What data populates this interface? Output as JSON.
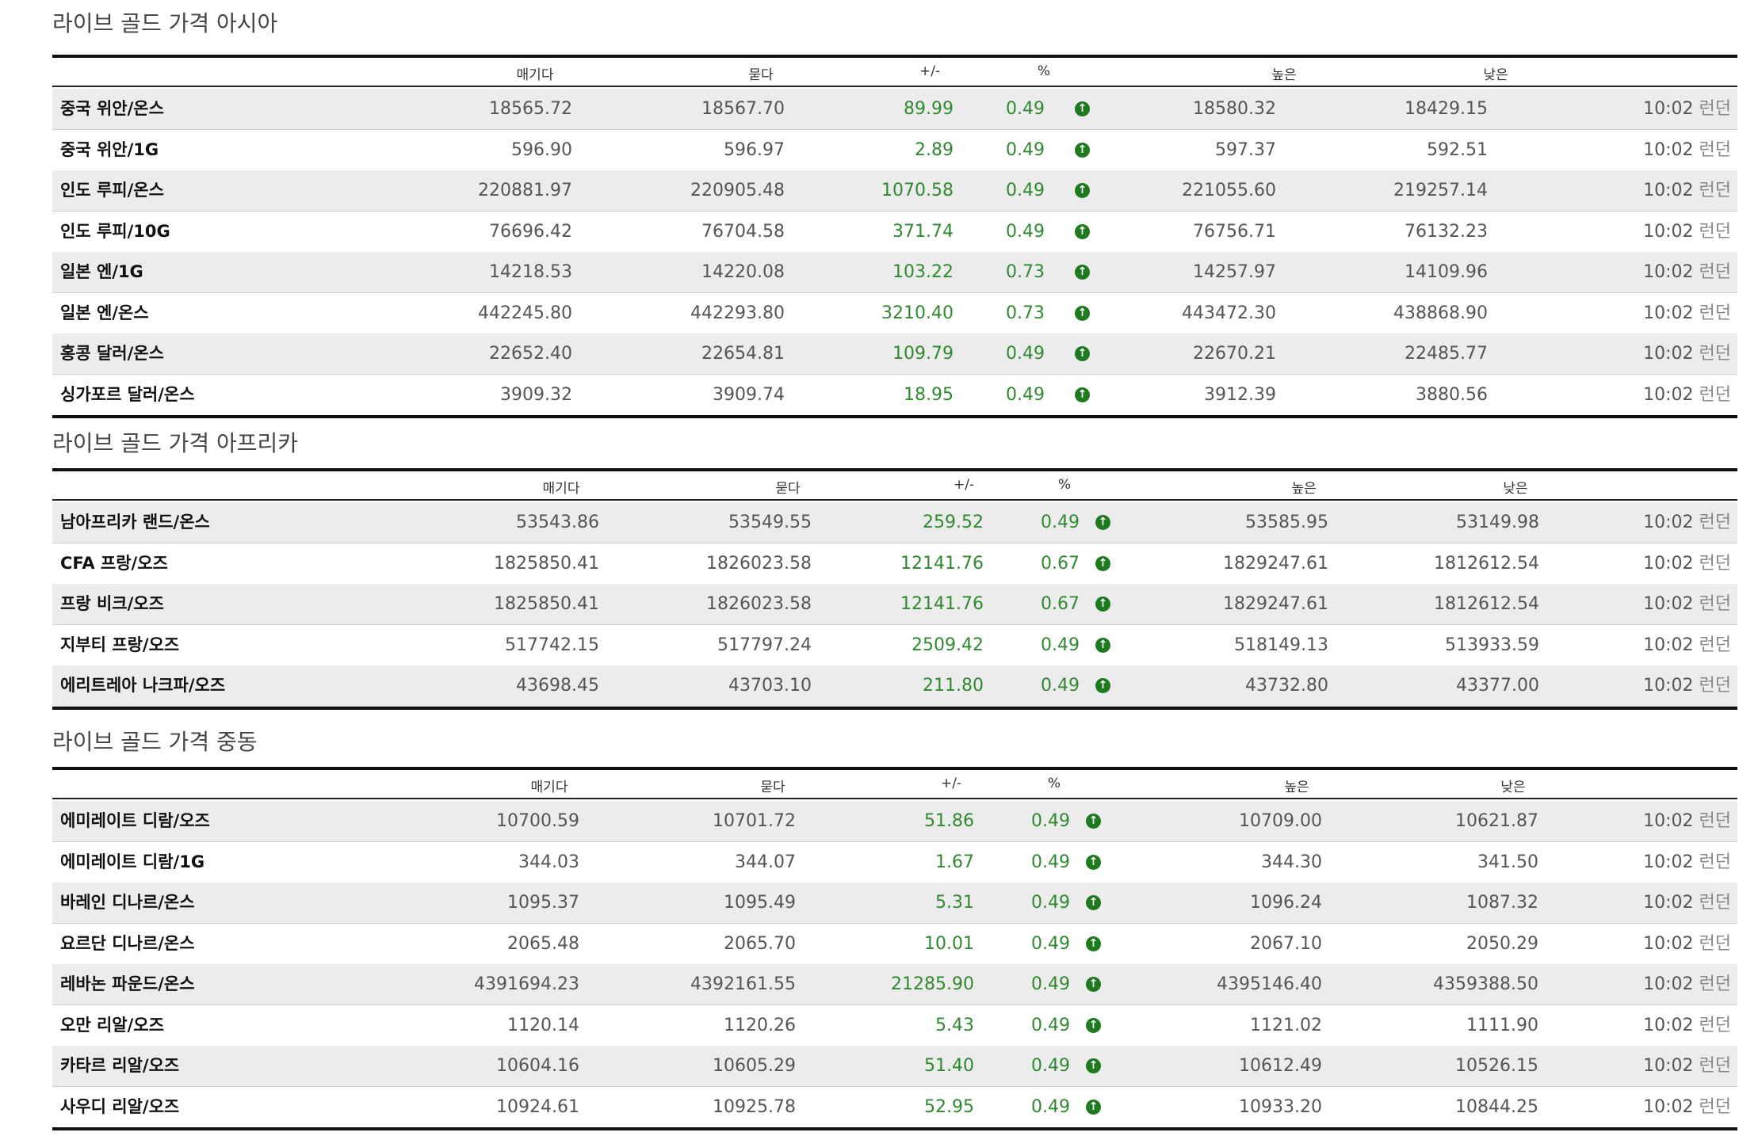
{
  "columns": {
    "bid": "매기다",
    "ask": "묻다",
    "change": "+/-",
    "percent": "%",
    "high": "높은",
    "low": "낮은"
  },
  "icons": {
    "up": "arrow-up-circle-icon"
  },
  "colors": {
    "positive": "#2f8a2f",
    "up_icon": "#1f7a1f"
  },
  "sections": [
    {
      "title": "라이브 골드 가격 아시아",
      "rows": [
        {
          "name": "중국 위안/온스",
          "bid": "18565.72",
          "ask": "18567.70",
          "change": "89.99",
          "percent": "0.49",
          "high": "18580.32",
          "low": "18429.15",
          "time": "10:02",
          "market": "런던"
        },
        {
          "name": "중국 위안/1G",
          "bid": "596.90",
          "ask": "596.97",
          "change": "2.89",
          "percent": "0.49",
          "high": "597.37",
          "low": "592.51",
          "time": "10:02",
          "market": "런던"
        },
        {
          "name": "인도 루피/온스",
          "bid": "220881.97",
          "ask": "220905.48",
          "change": "1070.58",
          "percent": "0.49",
          "high": "221055.60",
          "low": "219257.14",
          "time": "10:02",
          "market": "런던"
        },
        {
          "name": "인도 루피/10G",
          "bid": "76696.42",
          "ask": "76704.58",
          "change": "371.74",
          "percent": "0.49",
          "high": "76756.71",
          "low": "76132.23",
          "time": "10:02",
          "market": "런던"
        },
        {
          "name": "일본 엔/1G",
          "bid": "14218.53",
          "ask": "14220.08",
          "change": "103.22",
          "percent": "0.73",
          "high": "14257.97",
          "low": "14109.96",
          "time": "10:02",
          "market": "런던"
        },
        {
          "name": "일본 엔/온스",
          "bid": "442245.80",
          "ask": "442293.80",
          "change": "3210.40",
          "percent": "0.73",
          "high": "443472.30",
          "low": "438868.90",
          "time": "10:02",
          "market": "런던"
        },
        {
          "name": "홍콩 달러/온스",
          "bid": "22652.40",
          "ask": "22654.81",
          "change": "109.79",
          "percent": "0.49",
          "high": "22670.21",
          "low": "22485.77",
          "time": "10:02",
          "market": "런던"
        },
        {
          "name": "싱가포르 달러/온스",
          "bid": "3909.32",
          "ask": "3909.74",
          "change": "18.95",
          "percent": "0.49",
          "high": "3912.39",
          "low": "3880.56",
          "time": "10:02",
          "market": "런던"
        }
      ]
    },
    {
      "title": "라이브 골드 가격 아프리카",
      "rows": [
        {
          "name": "남아프리카 랜드/온스",
          "bid": "53543.86",
          "ask": "53549.55",
          "change": "259.52",
          "percent": "0.49",
          "high": "53585.95",
          "low": "53149.98",
          "time": "10:02",
          "market": "런던"
        },
        {
          "name": "CFA 프랑/오즈",
          "bid": "1825850.41",
          "ask": "1826023.58",
          "change": "12141.76",
          "percent": "0.67",
          "high": "1829247.61",
          "low": "1812612.54",
          "time": "10:02",
          "market": "런던"
        },
        {
          "name": "프랑 비크/오즈",
          "bid": "1825850.41",
          "ask": "1826023.58",
          "change": "12141.76",
          "percent": "0.67",
          "high": "1829247.61",
          "low": "1812612.54",
          "time": "10:02",
          "market": "런던"
        },
        {
          "name": "지부티 프랑/오즈",
          "bid": "517742.15",
          "ask": "517797.24",
          "change": "2509.42",
          "percent": "0.49",
          "high": "518149.13",
          "low": "513933.59",
          "time": "10:02",
          "market": "런던"
        },
        {
          "name": "에리트레아 나크파/오즈",
          "bid": "43698.45",
          "ask": "43703.10",
          "change": "211.80",
          "percent": "0.49",
          "high": "43732.80",
          "low": "43377.00",
          "time": "10:02",
          "market": "런던"
        }
      ]
    },
    {
      "title": "라이브 골드 가격 중동",
      "rows": [
        {
          "name": "에미레이트 디람/오즈",
          "bid": "10700.59",
          "ask": "10701.72",
          "change": "51.86",
          "percent": "0.49",
          "high": "10709.00",
          "low": "10621.87",
          "time": "10:02",
          "market": "런던"
        },
        {
          "name": "에미레이트 디람/1G",
          "bid": "344.03",
          "ask": "344.07",
          "change": "1.67",
          "percent": "0.49",
          "high": "344.30",
          "low": "341.50",
          "time": "10:02",
          "market": "런던"
        },
        {
          "name": "바레인 디나르/온스",
          "bid": "1095.37",
          "ask": "1095.49",
          "change": "5.31",
          "percent": "0.49",
          "high": "1096.24",
          "low": "1087.32",
          "time": "10:02",
          "market": "런던"
        },
        {
          "name": "요르단 디나르/온스",
          "bid": "2065.48",
          "ask": "2065.70",
          "change": "10.01",
          "percent": "0.49",
          "high": "2067.10",
          "low": "2050.29",
          "time": "10:02",
          "market": "런던"
        },
        {
          "name": "레바논 파운드/온스",
          "bid": "4391694.23",
          "ask": "4392161.55",
          "change": "21285.90",
          "percent": "0.49",
          "high": "4395146.40",
          "low": "4359388.50",
          "time": "10:02",
          "market": "런던"
        },
        {
          "name": "오만 리알/오즈",
          "bid": "1120.14",
          "ask": "1120.26",
          "change": "5.43",
          "percent": "0.49",
          "high": "1121.02",
          "low": "1111.90",
          "time": "10:02",
          "market": "런던"
        },
        {
          "name": "카타르 리알/오즈",
          "bid": "10604.16",
          "ask": "10605.29",
          "change": "51.40",
          "percent": "0.49",
          "high": "10612.49",
          "low": "10526.15",
          "time": "10:02",
          "market": "런던"
        },
        {
          "name": "사우디 리알/오즈",
          "bid": "10924.61",
          "ask": "10925.78",
          "change": "52.95",
          "percent": "0.49",
          "high": "10933.20",
          "low": "10844.25",
          "time": "10:02",
          "market": "런던"
        }
      ]
    }
  ]
}
